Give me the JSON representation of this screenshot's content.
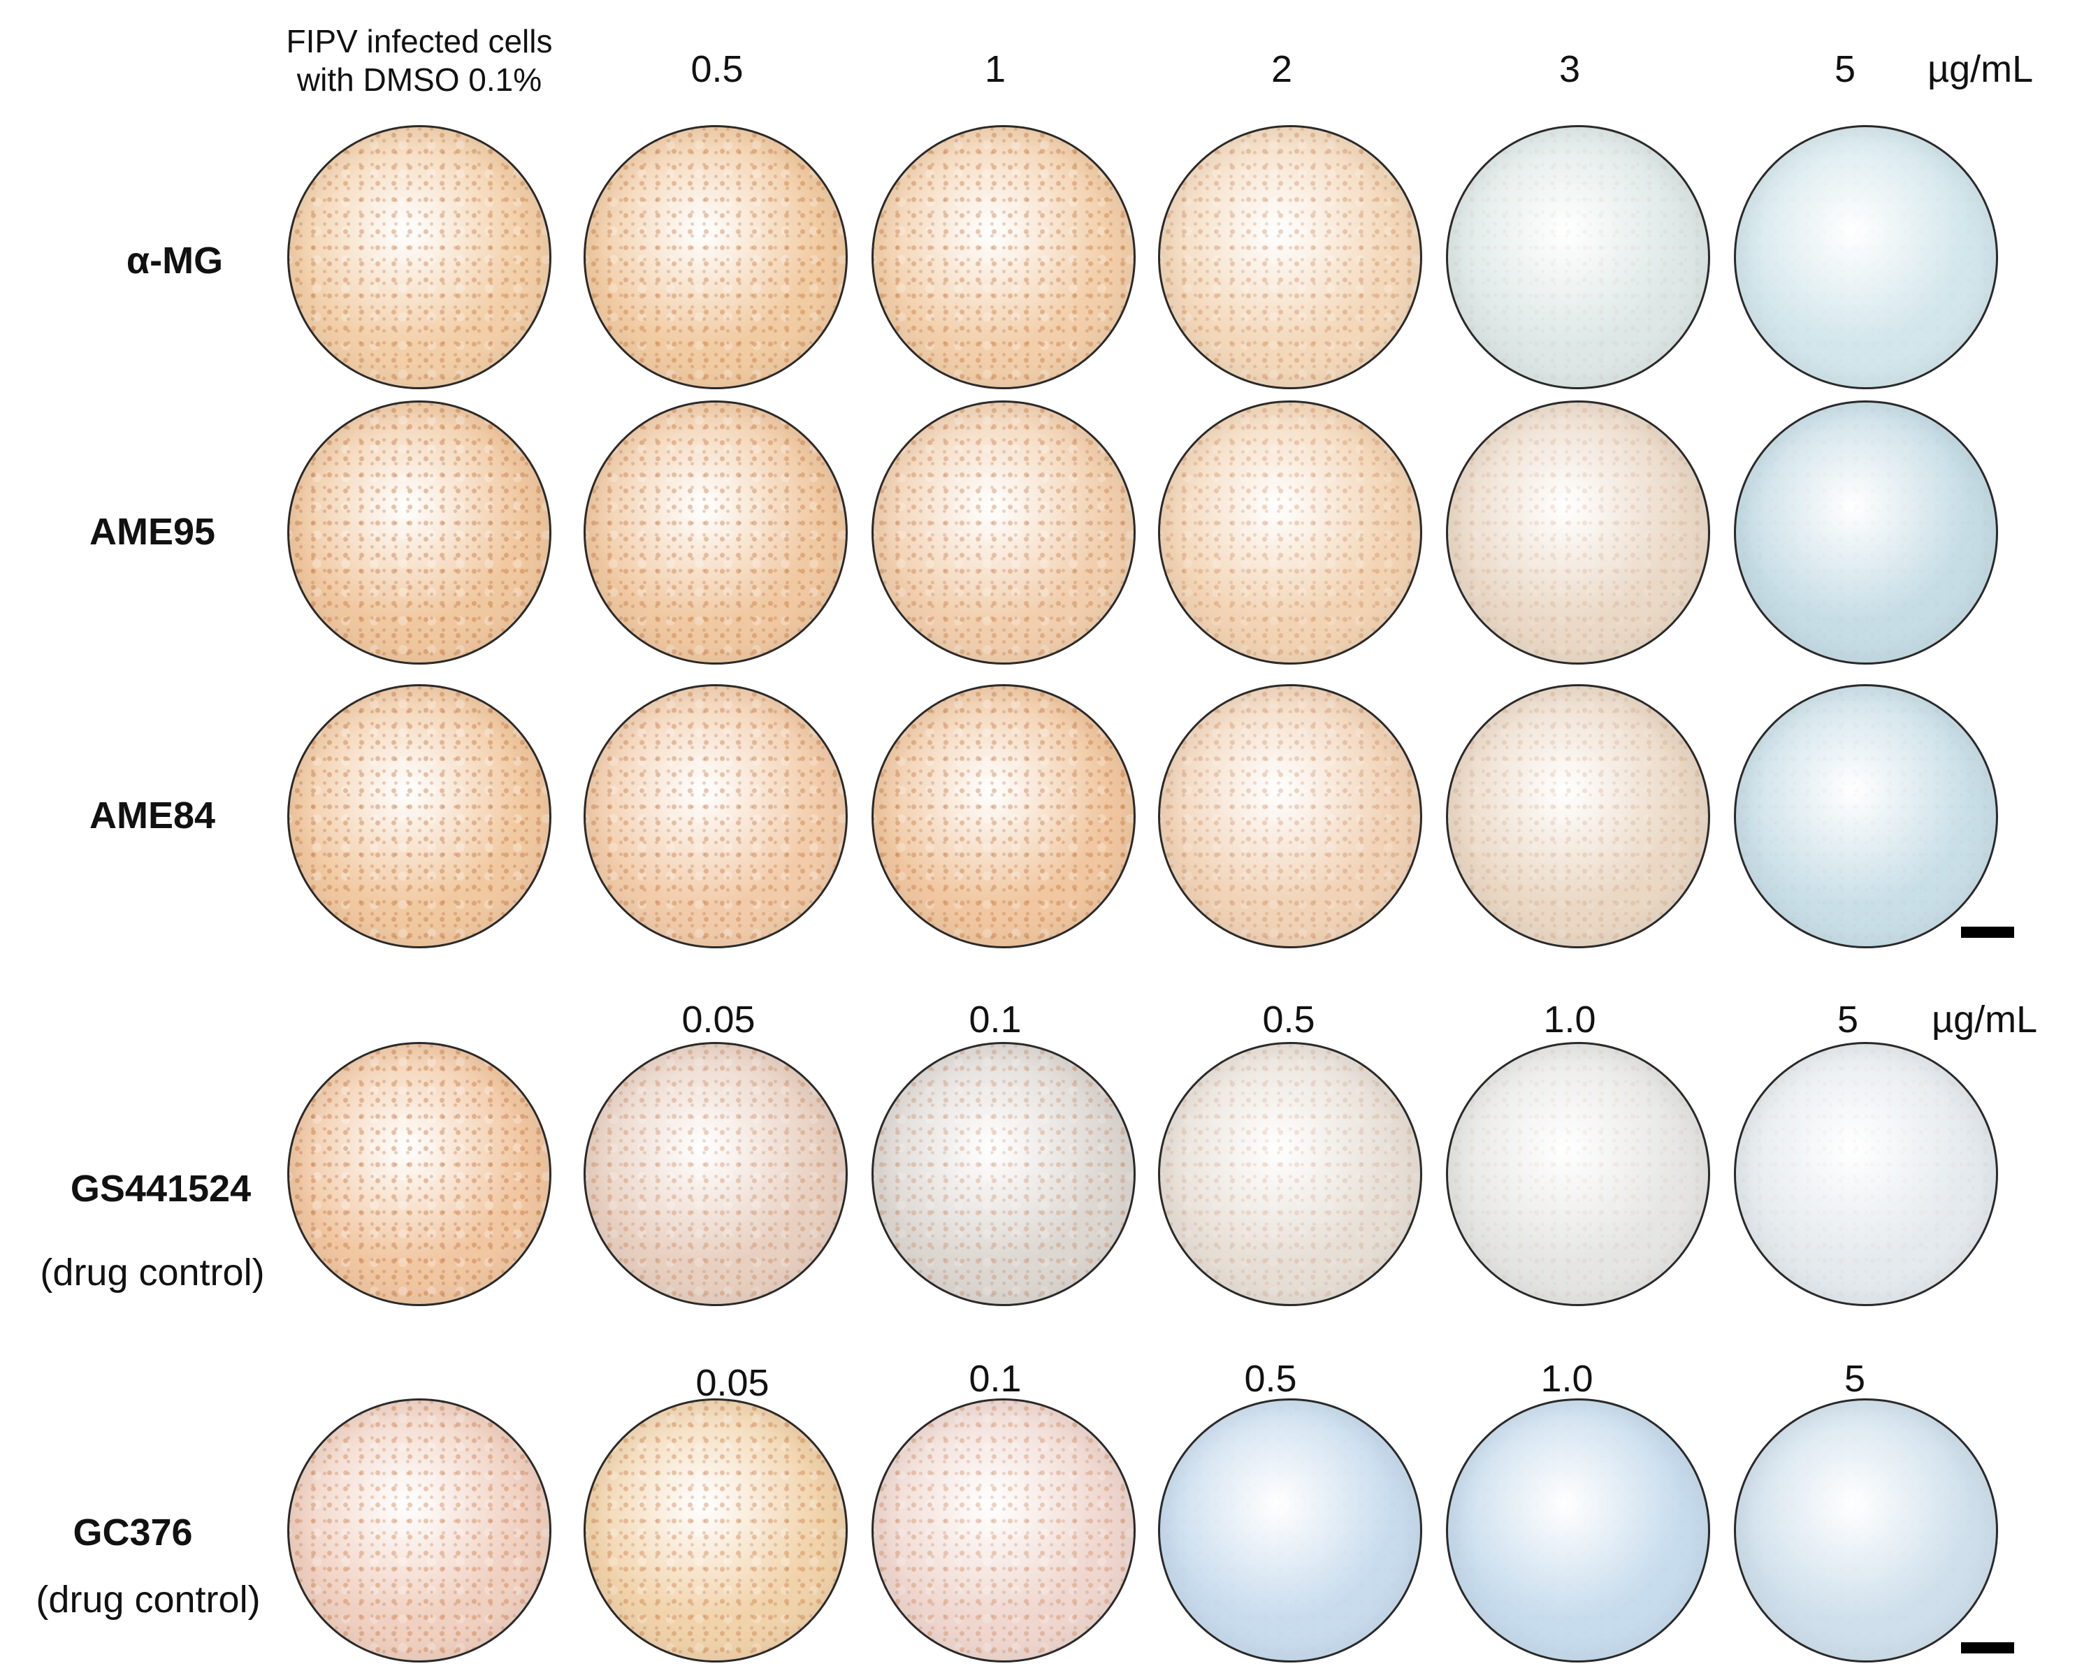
{
  "control_header": [
    "FIPV infected cells",
    "with DMSO 0.1%"
  ],
  "top_concentrations": [
    "0.5",
    "1",
    "2",
    "3",
    "5"
  ],
  "top_unit": "µg/mL",
  "gs_concentrations": [
    "0.05",
    "0.1",
    "0.5",
    "1.0",
    "5"
  ],
  "gs_unit": "µg/mL",
  "gc_concentrations": [
    "0.05",
    "0.1",
    "0.5",
    "1.0",
    "5"
  ],
  "rows": [
    {
      "label": "α-MG",
      "sublabel": ""
    },
    {
      "label": "AME95",
      "sublabel": ""
    },
    {
      "label": "AME84",
      "sublabel": ""
    },
    {
      "label": "GS441524",
      "sublabel": "(drug control)"
    },
    {
      "label": "GC376",
      "sublabel": "(drug control)"
    }
  ],
  "well_colors": [
    [
      "#f2cfa8",
      "#f1cba2",
      "#f2cfaa",
      "#f3d8ba",
      "#dde8e6",
      "#d2e6ec"
    ],
    [
      "#f0c8a0",
      "#f0c9a2",
      "#f1cfae",
      "#f2d4b4",
      "#ead9c7",
      "#c6dde6"
    ],
    [
      "#f1c9a1",
      "#f2ccaa",
      "#f0c7a0",
      "#f1d3b7",
      "#ead8c5",
      "#c9dfe8"
    ],
    [
      "#f1c7a2",
      "#e8d0c1",
      "#ddd7d2",
      "#e7dfd6",
      "#e5e6e4",
      "#e4eaee"
    ],
    [
      "#f0d0c0",
      "#f1d3ab",
      "#efd7cf",
      "#c8dcee",
      "#c7dced",
      "#cfe0ec"
    ]
  ],
  "cell_density": [
    [
      0.75,
      0.75,
      0.75,
      0.6,
      0.12,
      0.04
    ],
    [
      0.8,
      0.75,
      0.7,
      0.55,
      0.3,
      0.06
    ],
    [
      0.8,
      0.75,
      0.75,
      0.55,
      0.35,
      0.08
    ],
    [
      0.8,
      0.6,
      0.55,
      0.35,
      0.15,
      0.08
    ],
    [
      0.7,
      0.7,
      0.6,
      0.03,
      0.02,
      0.02
    ]
  ]
}
